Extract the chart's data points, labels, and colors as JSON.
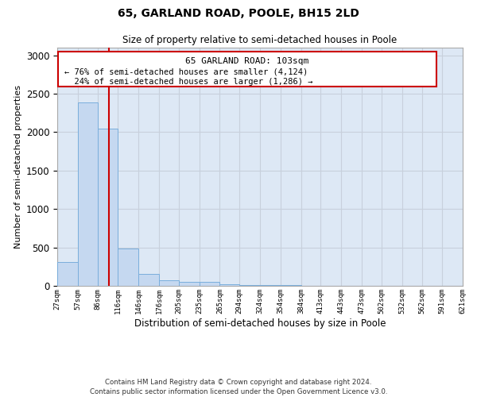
{
  "title": "65, GARLAND ROAD, POOLE, BH15 2LD",
  "subtitle": "Size of property relative to semi-detached houses in Poole",
  "xlabel": "Distribution of semi-detached houses by size in Poole",
  "ylabel": "Number of semi-detached properties",
  "footer_line1": "Contains HM Land Registry data © Crown copyright and database right 2024.",
  "footer_line2": "Contains public sector information licensed under the Open Government Licence v3.0.",
  "bin_edges": [
    27,
    57,
    86,
    116,
    146,
    176,
    205,
    235,
    265,
    294,
    324,
    354,
    384,
    413,
    443,
    473,
    502,
    532,
    562,
    591,
    621
  ],
  "bar_heights": [
    305,
    2390,
    2050,
    490,
    150,
    75,
    50,
    50,
    20,
    15,
    10,
    8,
    5,
    4,
    3,
    3,
    2,
    2,
    2,
    2
  ],
  "bar_color": "#c5d8f0",
  "bar_edge_color": "#7aaedc",
  "property_size": 103,
  "property_label": "65 GARLAND ROAD: 103sqm",
  "pct_smaller": 76,
  "count_smaller": 4124,
  "pct_larger": 24,
  "count_larger": 1286,
  "vline_color": "#cc0000",
  "annotation_box_color": "#cc0000",
  "ylim": [
    0,
    3100
  ],
  "xlim": [
    27,
    621
  ],
  "bg_color": "#ffffff",
  "grid_color": "#c8d0dc",
  "tick_labels": [
    "27sqm",
    "57sqm",
    "86sqm",
    "116sqm",
    "146sqm",
    "176sqm",
    "205sqm",
    "235sqm",
    "265sqm",
    "294sqm",
    "324sqm",
    "354sqm",
    "384sqm",
    "413sqm",
    "443sqm",
    "473sqm",
    "502sqm",
    "532sqm",
    "562sqm",
    "591sqm",
    "621sqm"
  ]
}
